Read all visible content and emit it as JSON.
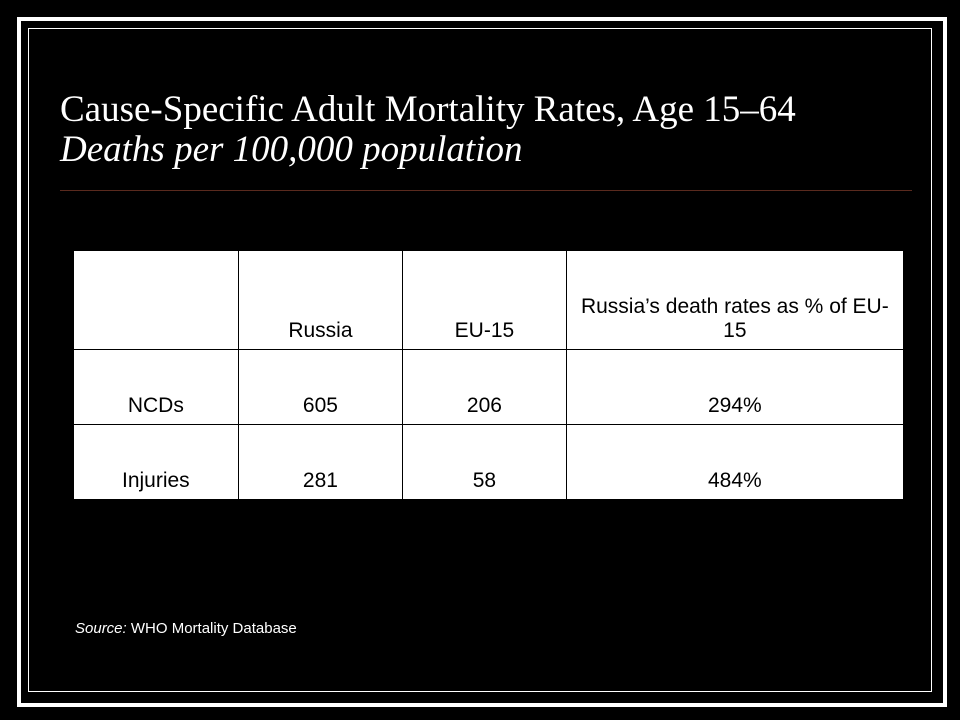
{
  "slide": {
    "title": "Cause-Specific Adult Mortality Rates, Age 15–64",
    "subtitle": "Deaths per 100,000 population"
  },
  "table": {
    "headers": [
      "",
      "Russia",
      "EU-15",
      "Russia’s death rates as % of EU-15"
    ],
    "rows": [
      {
        "label": "NCDs",
        "russia": "605",
        "eu15": "206",
        "pct": "294%"
      },
      {
        "label": "Injuries",
        "russia": "281",
        "eu15": "58",
        "pct": "484%"
      }
    ]
  },
  "source": {
    "label": "Source:",
    "text": "WHO Mortality Database"
  },
  "colors": {
    "background": "#000000",
    "text": "#ffffff",
    "divider": "#5a2a1e"
  }
}
